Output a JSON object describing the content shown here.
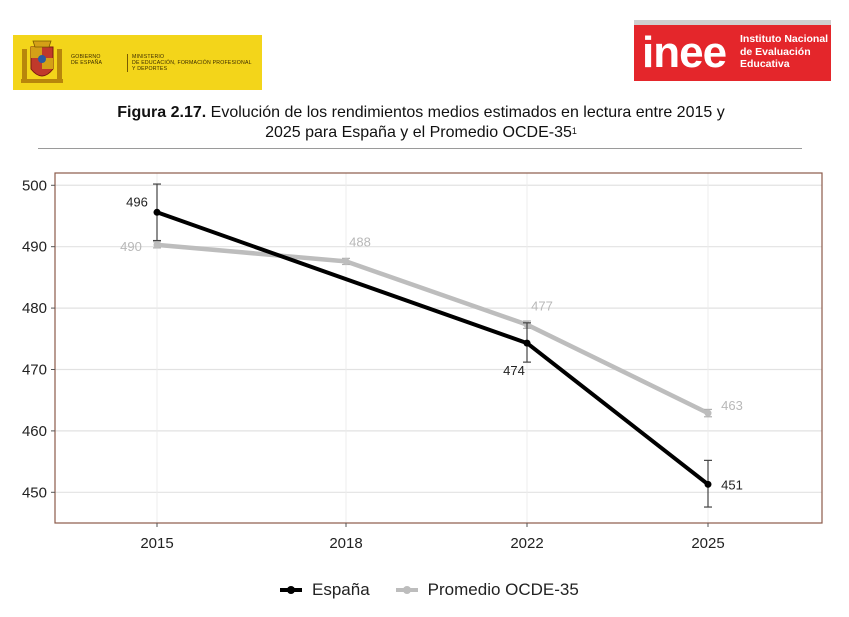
{
  "header": {
    "gov_logo": {
      "text_left": [
        "GOBIERNO",
        "DE ESPAÑA"
      ],
      "text_right": [
        "MINISTERIO",
        "DE EDUCACIÓN, FORMACIÓN PROFESIONAL",
        "Y DEPORTES"
      ]
    },
    "inee_logo": {
      "wordmark": "inee",
      "lines": [
        "Instituto Nacional",
        "de Evaluación",
        "Educativa"
      ]
    }
  },
  "caption": {
    "label": "Figura 2.17.",
    "line1": " Evolución de los rendimientos medios estimados en lectura entre 2015 y",
    "line2": "2025 para España y el Promedio OCDE-35",
    "footnote_mark": "1"
  },
  "chart_data": {
    "type": "line",
    "title": "",
    "xlabel": "",
    "ylabel": "",
    "x": [
      2015,
      2018,
      2022,
      2025
    ],
    "x_tick_labels": [
      "2015",
      "2018",
      "2022",
      "2025"
    ],
    "ylim": [
      445,
      502
    ],
    "y_ticks": [
      450,
      460,
      470,
      480,
      490,
      500
    ],
    "y_tick_labels": [
      "450",
      "460",
      "470",
      "480",
      "490",
      "500"
    ],
    "grid": true,
    "legend_position": "bottom",
    "series": [
      {
        "name": "España",
        "color": "#000000",
        "points": [
          {
            "x": 2015,
            "y": 495.6,
            "label": "496",
            "err_low": 491.0,
            "err_high": 500.2
          },
          {
            "x": 2022,
            "y": 474.3,
            "label": "474",
            "err_low": 471.2,
            "err_high": 477.6
          },
          {
            "x": 2025,
            "y": 451.3,
            "label": "451",
            "err_low": 447.6,
            "err_high": 455.2
          }
        ]
      },
      {
        "name": "Promedio OCDE-35",
        "color": "#bdbdbd",
        "points": [
          {
            "x": 2015,
            "y": 490.3,
            "label": "490",
            "err_low": 489.8,
            "err_high": 490.8
          },
          {
            "x": 2018,
            "y": 487.6,
            "label": "488",
            "err_low": 487.1,
            "err_high": 488.1
          },
          {
            "x": 2022,
            "y": 477.3,
            "label": "477",
            "err_low": 476.7,
            "err_high": 477.9
          },
          {
            "x": 2025,
            "y": 462.9,
            "label": "463",
            "err_low": 462.3,
            "err_high": 463.5
          }
        ]
      }
    ]
  }
}
